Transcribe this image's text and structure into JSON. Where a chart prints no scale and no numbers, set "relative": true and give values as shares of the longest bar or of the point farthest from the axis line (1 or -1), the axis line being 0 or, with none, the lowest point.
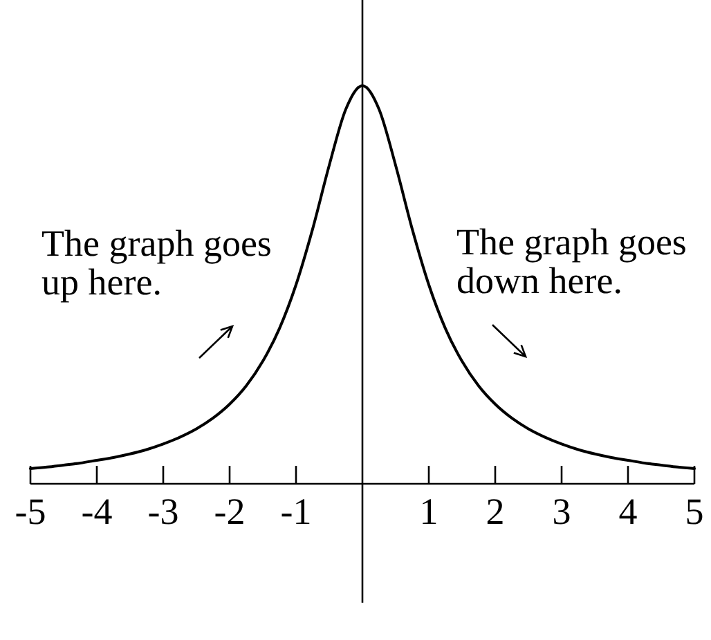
{
  "chart_data": {
    "type": "line",
    "relative": true,
    "x": [
      -5,
      -4.75,
      -4.5,
      -4.25,
      -4,
      -3.75,
      -3.5,
      -3.25,
      -3,
      -2.75,
      -2.5,
      -2.25,
      -2,
      -1.75,
      -1.5,
      -1.25,
      -1,
      -0.75,
      -0.5,
      -0.25,
      0,
      0.25,
      0.5,
      0.75,
      1,
      1.25,
      1.5,
      1.75,
      2,
      2.25,
      2.5,
      2.75,
      3,
      3.25,
      3.5,
      3.75,
      4,
      4.25,
      4.5,
      4.75,
      5
    ],
    "series": [
      {
        "color": "#000000",
        "values": [
          0.038,
          0.042,
          0.047,
          0.052,
          0.059,
          0.066,
          0.075,
          0.086,
          0.1,
          0.117,
          0.138,
          0.165,
          0.2,
          0.246,
          0.308,
          0.39,
          0.5,
          0.64,
          0.8,
          0.941,
          1,
          0.941,
          0.8,
          0.64,
          0.5,
          0.39,
          0.308,
          0.246,
          0.2,
          0.165,
          0.138,
          0.117,
          0.1,
          0.086,
          0.075,
          0.066,
          0.059,
          0.052,
          0.047,
          0.042,
          0.038
        ]
      }
    ],
    "xlim": [
      -5,
      5
    ],
    "xticks": [
      -5,
      -4,
      -3,
      -2,
      -1,
      1,
      2,
      3,
      4,
      5
    ],
    "annotations": [
      "The graph goes\nup here.",
      "The graph goes\ndown here."
    ]
  }
}
